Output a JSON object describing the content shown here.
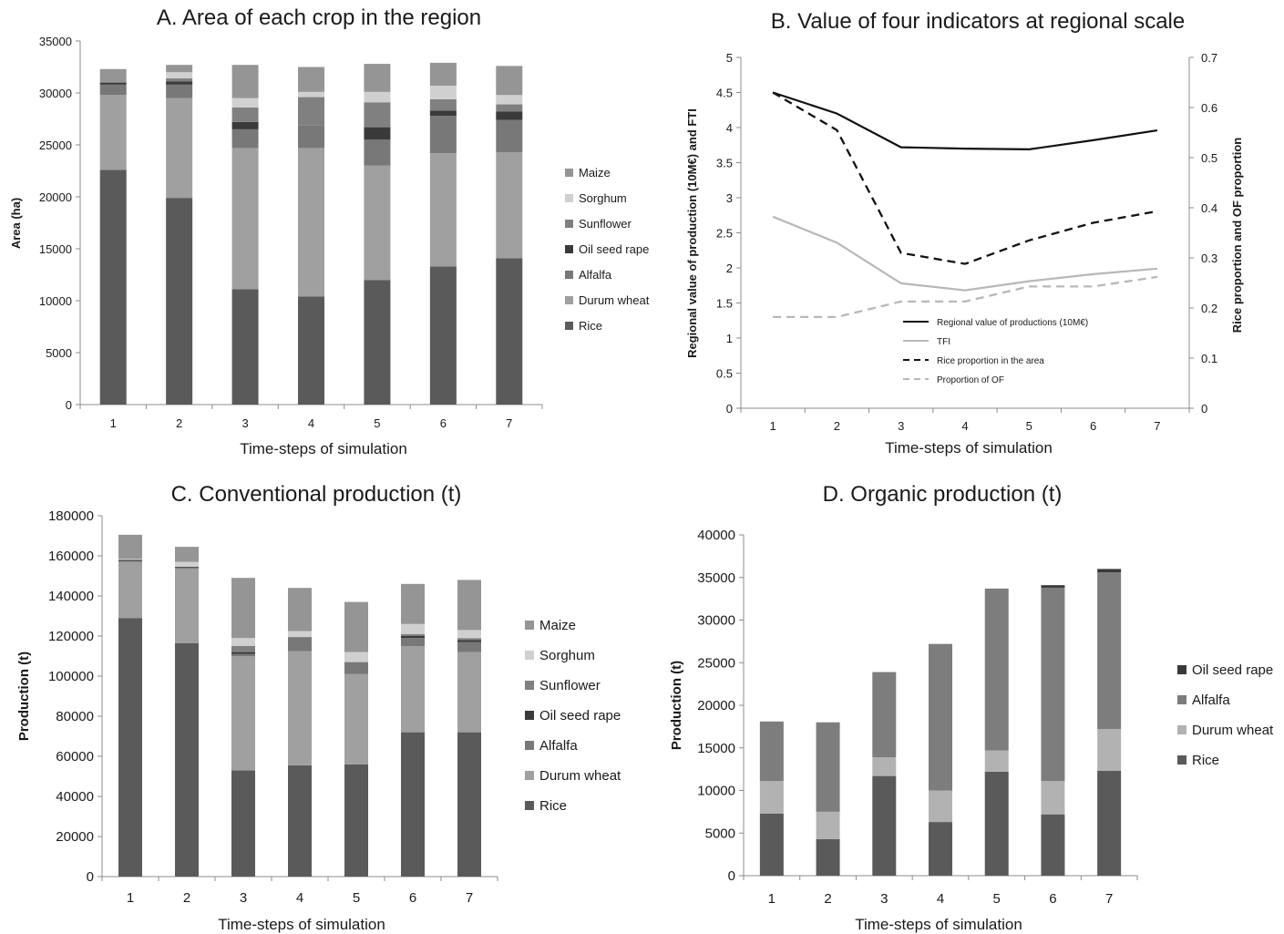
{
  "chart_data": [
    {
      "type": "bar",
      "stacked": true,
      "title": "A. Area of each crop in the region",
      "xlabel": "Time-steps of simulation",
      "ylabel": "Area (ha)",
      "ylim": [
        0,
        35000
      ],
      "yticks": [
        0,
        5000,
        10000,
        15000,
        20000,
        25000,
        30000,
        35000
      ],
      "categories": [
        "1",
        "2",
        "3",
        "4",
        "5",
        "6",
        "7"
      ],
      "legend_position": "right",
      "series": [
        {
          "name": "Rice",
          "color": "#5a5a5a",
          "values": [
            22600,
            19900,
            11100,
            10400,
            12000,
            13300,
            14100
          ]
        },
        {
          "name": "Durum wheat",
          "color": "#a0a0a0",
          "values": [
            7200,
            9600,
            13600,
            14300,
            11000,
            10900,
            10200
          ]
        },
        {
          "name": "Alfalfa",
          "color": "#787878",
          "values": [
            1000,
            1300,
            1800,
            2200,
            2500,
            3600,
            3100
          ]
        },
        {
          "name": "Oil seed rape",
          "color": "#3a3a3a",
          "values": [
            200,
            300,
            700,
            0,
            1200,
            500,
            800
          ]
        },
        {
          "name": "Sunflower",
          "color": "#808080",
          "values": [
            0,
            300,
            1400,
            2700,
            2400,
            1100,
            700
          ]
        },
        {
          "name": "Sorghum",
          "color": "#d0d0d0",
          "values": [
            0,
            600,
            900,
            500,
            1000,
            1300,
            900
          ]
        },
        {
          "name": "Maize",
          "color": "#959595",
          "values": [
            1300,
            700,
            3200,
            2400,
            2700,
            2200,
            2800
          ]
        }
      ]
    },
    {
      "type": "line",
      "title": "B. Value of four indicators at regional scale",
      "xlabel": "Time-steps of simulation",
      "ylabel": "Regional value of production (10M€) and FTI",
      "ylabel_right": "Rice proportion and OF proportion",
      "ylim": [
        0,
        5
      ],
      "yticks": [
        0,
        0.5,
        1,
        1.5,
        2,
        2.5,
        3,
        3.5,
        4,
        4.5,
        5
      ],
      "ylim_right": [
        0,
        0.7
      ],
      "yticks_right": [
        0,
        0.1,
        0.2,
        0.3,
        0.4,
        0.5,
        0.6,
        0.7
      ],
      "x": [
        "1",
        "2",
        "3",
        "4",
        "5",
        "6",
        "7"
      ],
      "legend_position": "bottom-center inside",
      "series": [
        {
          "name": "Regional value of productions (10M€)",
          "axis": "left",
          "style": "solid",
          "color": "#111111",
          "values": [
            4.5,
            4.2,
            3.72,
            3.7,
            3.69,
            3.82,
            3.96
          ]
        },
        {
          "name": "TFI",
          "axis": "left",
          "style": "solid",
          "color": "#b8b8b8",
          "values": [
            2.73,
            2.36,
            1.78,
            1.68,
            1.81,
            1.91,
            1.99
          ]
        },
        {
          "name": "Rice proportion in the area",
          "axis": "right",
          "style": "dashed",
          "color": "#111111",
          "values": [
            0.63,
            0.555,
            0.31,
            0.288,
            0.335,
            0.37,
            0.393
          ]
        },
        {
          "name": "Proportion of OF",
          "axis": "right",
          "style": "dashed",
          "color": "#b8b8b8",
          "values": [
            0.182,
            0.182,
            0.213,
            0.213,
            0.243,
            0.243,
            0.262
          ]
        }
      ]
    },
    {
      "type": "bar",
      "stacked": true,
      "title": "C. Conventional production (t)",
      "xlabel": "Time-steps of simulation",
      "ylabel": "Production (t)",
      "ylim": [
        0,
        180000
      ],
      "yticks": [
        0,
        20000,
        40000,
        60000,
        80000,
        100000,
        120000,
        140000,
        160000,
        180000
      ],
      "categories": [
        "1",
        "2",
        "3",
        "4",
        "5",
        "6",
        "7"
      ],
      "legend_position": "right",
      "series": [
        {
          "name": "Rice",
          "color": "#5a5a5a",
          "values": [
            129000,
            116500,
            53000,
            55500,
            56000,
            72000,
            72000
          ]
        },
        {
          "name": "Durum wheat",
          "color": "#a0a0a0",
          "values": [
            28000,
            37000,
            57000,
            57000,
            45000,
            43000,
            40000
          ]
        },
        {
          "name": "Alfalfa",
          "color": "#787878",
          "values": [
            500,
            500,
            1000,
            7000,
            6000,
            4000,
            5000
          ]
        },
        {
          "name": "Oil seed rape",
          "color": "#3a3a3a",
          "values": [
            500,
            500,
            1000,
            0,
            0,
            1000,
            1000
          ]
        },
        {
          "name": "Sunflower",
          "color": "#808080",
          "values": [
            0,
            0,
            3000,
            0,
            0,
            1000,
            1000
          ]
        },
        {
          "name": "Sorghum",
          "color": "#d0d0d0",
          "values": [
            500,
            2500,
            4000,
            3000,
            5000,
            5000,
            4000
          ]
        },
        {
          "name": "Maize",
          "color": "#959595",
          "values": [
            12000,
            7500,
            30000,
            21500,
            25000,
            20000,
            25000
          ]
        }
      ]
    },
    {
      "type": "bar",
      "stacked": true,
      "title": "D. Organic production (t)",
      "xlabel": "Time-steps of simulation",
      "ylabel": "Production (t)",
      "ylim": [
        0,
        40000
      ],
      "yticks": [
        0,
        5000,
        10000,
        15000,
        20000,
        25000,
        30000,
        35000,
        40000
      ],
      "categories": [
        "1",
        "2",
        "3",
        "4",
        "5",
        "6",
        "7"
      ],
      "legend_position": "right",
      "series": [
        {
          "name": "Rice",
          "color": "#5a5a5a",
          "values": [
            7300,
            4300,
            11700,
            6300,
            12200,
            7200,
            12300
          ]
        },
        {
          "name": "Durum wheat",
          "color": "#b2b2b2",
          "values": [
            3800,
            3200,
            2200,
            3700,
            2500,
            3900,
            4900
          ]
        },
        {
          "name": "Alfalfa",
          "color": "#7d7d7d",
          "values": [
            7000,
            10500,
            10000,
            17200,
            19000,
            22700,
            18400
          ]
        },
        {
          "name": "Oil seed rape",
          "color": "#3a3a3a",
          "values": [
            0,
            0,
            0,
            0,
            0,
            300,
            400
          ]
        }
      ]
    }
  ]
}
